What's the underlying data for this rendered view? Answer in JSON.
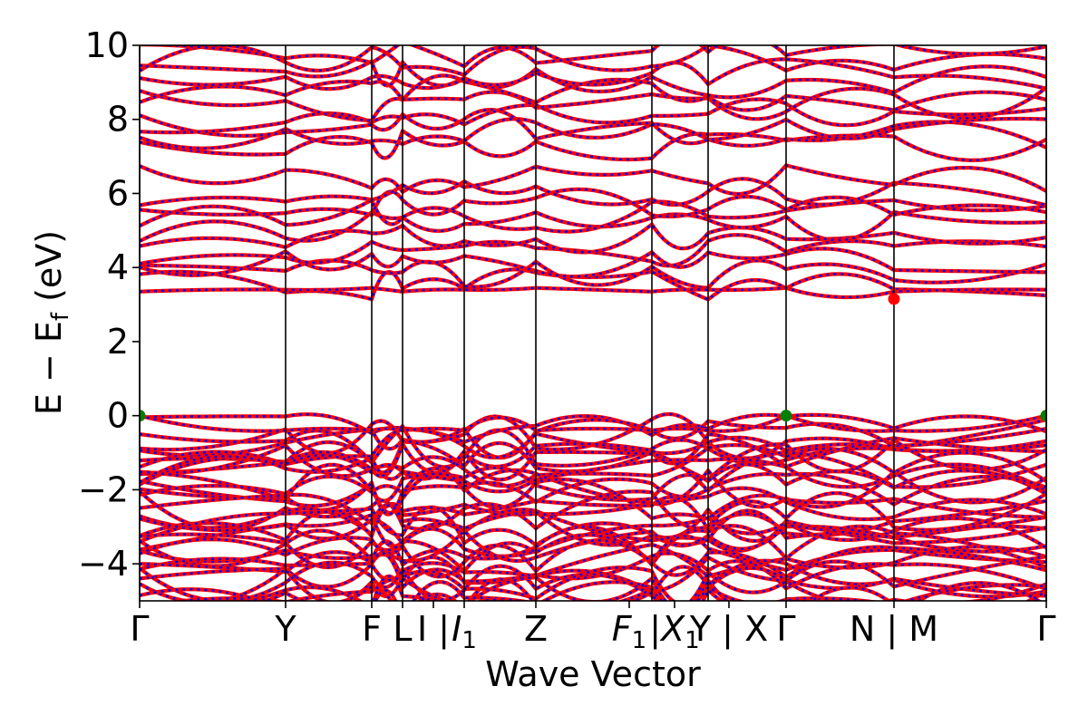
{
  "chart_data": {
    "type": "line",
    "title": "",
    "xlabel": "Wave Vector",
    "ylabel_parts": {
      "main": "E − E",
      "sub": "f",
      "unit": " (eV)"
    },
    "ylim": [
      -5,
      10
    ],
    "y_ticks": [
      -4,
      -2,
      0,
      2,
      4,
      6,
      8,
      10
    ],
    "y_tick_labels": [
      "−4",
      "−2",
      "0",
      "2",
      "4",
      "6",
      "8",
      "10"
    ],
    "k_path_breaks": [
      0,
      0.161,
      0.256,
      0.29,
      0.358,
      0.437,
      0.565,
      0.627,
      0.713,
      0.832,
      1.0
    ],
    "k_labels": [
      {
        "x": 0.0,
        "text": "Γ"
      },
      {
        "x": 0.161,
        "text": "Y"
      },
      {
        "x": 0.256,
        "text": "F"
      },
      {
        "x": 0.29,
        "text": "L"
      },
      {
        "x": 0.324,
        "text": "I | "
      },
      {
        "x": 0.358,
        "text": "I",
        "sub": "1"
      },
      {
        "x": 0.437,
        "text": "Z"
      },
      {
        "x": 0.54,
        "text": "F",
        "sub": "1"
      },
      {
        "x": 0.59,
        "text": "|X",
        "sub": "1"
      },
      {
        "x": 0.65,
        "text": "Y | X"
      },
      {
        "x": 0.713,
        "text": "Γ"
      },
      {
        "x": 0.832,
        "text": "N | M"
      },
      {
        "x": 1.0,
        "text": "Γ"
      }
    ],
    "series_styles": [
      {
        "color": "#ff0000",
        "style": "solid"
      },
      {
        "color": "#0000ff",
        "style": "dotted"
      }
    ],
    "valence_band_max": [
      {
        "x": 0.0,
        "y": 0.0,
        "color": "#008000"
      },
      {
        "x": 0.713,
        "y": 0.0,
        "color": "#008000"
      },
      {
        "x": 1.0,
        "y": 0.0,
        "color": "#008000"
      }
    ],
    "conduction_band_min": [
      {
        "x": 0.832,
        "y": 3.15,
        "color": "#ff0000"
      }
    ],
    "band_groups": {
      "valence": {
        "count": 34,
        "top": 0.0,
        "bottom": -5.0
      },
      "conduction_low": {
        "count": 10,
        "top": 6.6,
        "bottom": 3.2
      },
      "conduction_high": {
        "count": 10,
        "top": 10.0,
        "bottom": 7.1
      }
    }
  }
}
